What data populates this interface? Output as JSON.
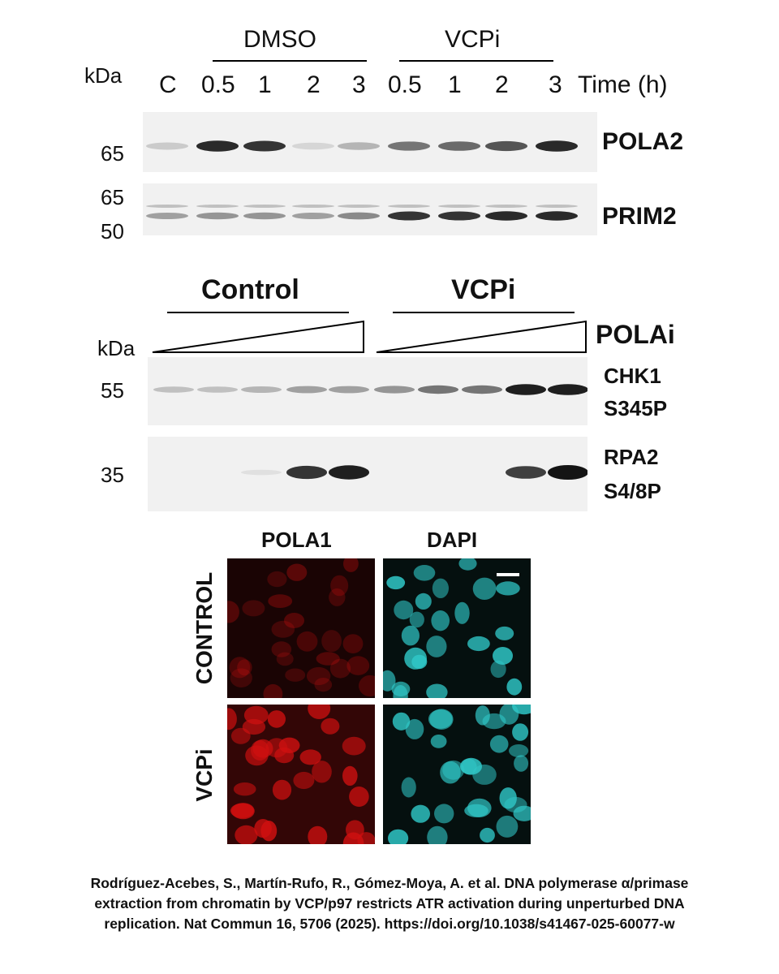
{
  "top_blot": {
    "kda": "kDa",
    "group_dmso": "DMSO",
    "group_vcpi": "VCPi",
    "lanes": [
      "C",
      "0.5",
      "1",
      "2",
      "3",
      "0.5",
      "1",
      "2",
      "3"
    ],
    "time_label": "Time (h)",
    "markers": [
      "65",
      "65",
      "50"
    ],
    "proteins": [
      "POLA2",
      "PRIM2"
    ],
    "pola2_intensity": [
      0.15,
      0.9,
      0.85,
      0.1,
      0.25,
      0.55,
      0.6,
      0.7,
      0.9
    ],
    "prim2_intensity": [
      0.35,
      0.4,
      0.4,
      0.35,
      0.45,
      0.85,
      0.85,
      0.9,
      0.9
    ]
  },
  "middle_blot": {
    "group_control": "Control",
    "group_vcpi": "VCPi",
    "treatment": "POLAi",
    "kda": "kDa",
    "markers": [
      "55",
      "35"
    ],
    "proteins": [
      "CHK1",
      "S345P",
      "RPA2",
      "S4/8P"
    ],
    "chk1_intensity": [
      0.2,
      0.2,
      0.25,
      0.35,
      0.35,
      0.4,
      0.55,
      0.55,
      0.95,
      0.95
    ],
    "rpa2_intensity": [
      0,
      0,
      0.05,
      0.85,
      0.95,
      0,
      0,
      0,
      0.8,
      1.0
    ]
  },
  "microscopy": {
    "col_headers": [
      "POLA1",
      "DAPI"
    ],
    "row_headers": [
      "CONTROL",
      "VCPi"
    ],
    "colors": {
      "pola1": "#d01010",
      "dapi": "#30c8c8"
    }
  },
  "caption": [
    "Rodríguez-Acebes, S., Martín-Rufo, R., Gómez-Moya, A. et al. DNA polymerase α/primase",
    "extraction from chromatin by VCP/p97 restricts ATR activation during unperturbed DNA",
    "replication. Nat Commun 16, 5706 (2025). https://doi.org/10.1038/s41467-025-60077-w"
  ]
}
